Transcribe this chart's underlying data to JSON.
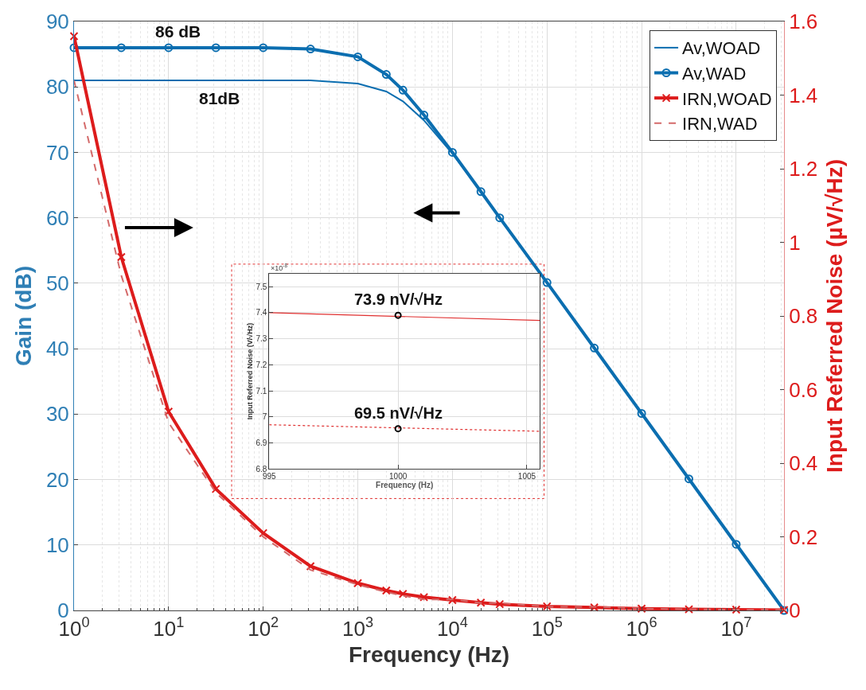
{
  "chart_data": [
    {
      "type": "line",
      "xlabel": "Frequency (Hz)",
      "ylabel": "Gain (dB)",
      "y2label": "Input Referred Noise (µV/√Hz)",
      "log": "x",
      "grid": true,
      "legend": "top right",
      "xlim": [
        1,
        32000000
      ],
      "xticks": [
        {
          "value": 1,
          "label": "10$^{0}$"
        },
        {
          "value": 10,
          "label": "10$^{1}$"
        },
        {
          "value": 100,
          "label": "10$^{2}$"
        },
        {
          "value": 1000,
          "label": "10$^{3}$"
        },
        {
          "value": 10000,
          "label": "10$^{4}$"
        },
        {
          "value": 100000,
          "label": "10$^{5}$"
        },
        {
          "value": 1000000,
          "label": "10$^{6}$"
        },
        {
          "value": 10000000,
          "label": "10$^{7}$"
        }
      ],
      "ylim": [
        0,
        90
      ],
      "yticks": [
        0,
        10,
        20,
        30,
        40,
        50,
        60,
        70,
        80,
        90
      ],
      "y2lim": [
        0,
        1.6
      ],
      "y2ticks": [
        0,
        0.2,
        0.4,
        0.6,
        0.8,
        1,
        1.2,
        1.4,
        1.6
      ],
      "x": [
        1,
        3.16,
        10,
        31.6,
        100,
        316,
        1000,
        2000,
        3000,
        5000,
        10000,
        20000,
        31600,
        100000,
        316000,
        1000000,
        3160000,
        10000000,
        32000000
      ],
      "series": [
        {
          "name": "Av,WOAD",
          "color": "#0b6eb0",
          "marker": "none",
          "line_style": "solid",
          "values": [
            81,
            81,
            81,
            81,
            81,
            81,
            80.5,
            79.3,
            77.8,
            74.9,
            69.8,
            64.0,
            60.0,
            50.1,
            40.1,
            30.1,
            20.1,
            10.1,
            0
          ]
        },
        {
          "name": "Av,WAD",
          "color": "#0b6eb0",
          "marker": "circle",
          "line_style": "solid",
          "values": [
            86,
            86,
            86,
            86,
            86,
            85.8,
            84.6,
            81.9,
            79.5,
            75.7,
            70.0,
            64.0,
            60.0,
            50.1,
            40.1,
            30.1,
            20.1,
            10.1,
            0
          ]
        },
        {
          "name": "IRN,WOAD",
          "axis": "y2",
          "color": "#dd1c1c",
          "marker": "cross",
          "line_style": "solid",
          "values": [
            1.56,
            0.96,
            0.54,
            0.33,
            0.21,
            0.12,
            0.074,
            0.054,
            0.045,
            0.036,
            0.028,
            0.021,
            0.017,
            0.011,
            0.008,
            0.005,
            0.003,
            0.002,
            0.001
          ]
        },
        {
          "name": "IRN,WAD",
          "axis": "y2",
          "color": "#d46a6a",
          "marker": "none",
          "line_style": "dashed",
          "values": [
            1.44,
            0.91,
            0.51,
            0.32,
            0.2,
            0.11,
            0.07,
            0.05,
            0.04,
            0.03,
            0.03,
            0.02,
            0.02,
            0.01,
            0.01,
            0.005,
            0.003,
            0.002,
            0.001
          ]
        }
      ],
      "annotations": [
        {
          "text": "86 dB",
          "x": 7,
          "y": 86
        },
        {
          "text": "81dB",
          "x": 20,
          "y": 81
        }
      ]
    },
    {
      "type": "line",
      "xlabel": "Frequency (Hz)",
      "ylabel": "Input Referred Noise (V/√Hz)",
      "grid": true,
      "xlim": [
        995,
        1005.5
      ],
      "xticks": [
        995,
        1000,
        1005
      ],
      "ylim": [
        6.8,
        7.55
      ],
      "yticks": [
        6.8,
        6.9,
        7,
        7.1,
        7.2,
        7.3,
        7.4,
        7.5
      ],
      "series": [
        {
          "color": "#e03030",
          "line_style": "solid",
          "marker": "none",
          "x": [
            995,
            1005.5
          ],
          "values": [
            7.4,
            7.37
          ]
        },
        {
          "color": "#e03030",
          "line_style": "dotted",
          "marker": "none",
          "x": [
            995,
            1005.5
          ],
          "values": [
            6.97,
            6.945
          ]
        },
        {
          "type": "scatter",
          "color": "#000000",
          "marker": "circle",
          "x": [
            1000,
            1000
          ],
          "values": [
            7.39,
            6.955
          ]
        }
      ],
      "annotations": [
        "×10$^{-8}$",
        {
          "text": "73.9 nV/√Hz",
          "x": 1000,
          "y": 7.39
        },
        {
          "text": "69.5 nV/√Hz",
          "x": 1000,
          "y": 6.955
        }
      ]
    }
  ]
}
